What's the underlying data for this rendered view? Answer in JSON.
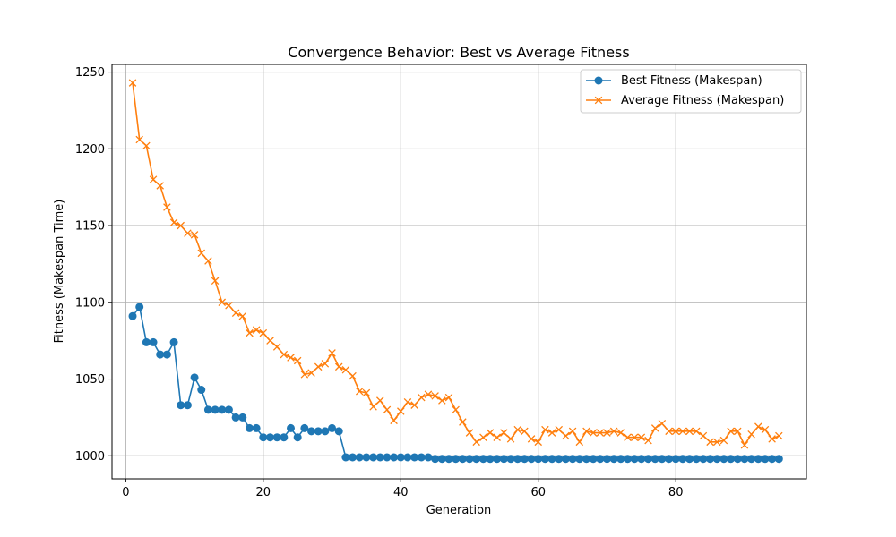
{
  "chart_data": {
    "type": "line",
    "title": "Convergence Behavior: Best vs Average Fitness",
    "xlabel": "Generation",
    "ylabel": "Fitness (Makespan Time)",
    "xlim": [
      -2,
      99
    ],
    "ylim": [
      985,
      1255
    ],
    "xticks": [
      0,
      20,
      40,
      60,
      80
    ],
    "yticks": [
      1000,
      1050,
      1100,
      1150,
      1200,
      1250
    ],
    "grid": true,
    "legend_position": "top-right",
    "x": [
      1,
      2,
      3,
      4,
      5,
      6,
      7,
      8,
      9,
      10,
      11,
      12,
      13,
      14,
      15,
      16,
      17,
      18,
      19,
      20,
      21,
      22,
      23,
      24,
      25,
      26,
      27,
      28,
      29,
      30,
      31,
      32,
      33,
      34,
      35,
      36,
      37,
      38,
      39,
      40,
      41,
      42,
      43,
      44,
      45,
      46,
      47,
      48,
      49,
      50,
      51,
      52,
      53,
      54,
      55,
      56,
      57,
      58,
      59,
      60,
      61,
      62,
      63,
      64,
      65,
      66,
      67,
      68,
      69,
      70,
      71,
      72,
      73,
      74,
      75,
      76,
      77,
      78,
      79,
      80,
      81,
      82,
      83,
      84,
      85,
      86,
      87,
      88,
      89,
      90,
      91,
      92,
      93,
      94,
      95
    ],
    "series": [
      {
        "name": "Best Fitness (Makespan)",
        "color": "#1f77b4",
        "marker": "circle",
        "values": [
          1091,
          1097,
          1074,
          1074,
          1066,
          1066,
          1074,
          1033,
          1033,
          1051,
          1043,
          1030,
          1030,
          1030,
          1030,
          1025,
          1025,
          1018,
          1018,
          1012,
          1012,
          1012,
          1012,
          1018,
          1012,
          1018,
          1016,
          1016,
          1016,
          1018,
          1016,
          999,
          999,
          999,
          999,
          999,
          999,
          999,
          999,
          999,
          999,
          999,
          999,
          999,
          998,
          998,
          998,
          998,
          998,
          998,
          998,
          998,
          998,
          998,
          998,
          998,
          998,
          998,
          998,
          998,
          998,
          998,
          998,
          998,
          998,
          998,
          998,
          998,
          998,
          998,
          998,
          998,
          998,
          998,
          998,
          998,
          998,
          998,
          998,
          998,
          998,
          998,
          998,
          998,
          998,
          998,
          998,
          998,
          998,
          998,
          998,
          998,
          998,
          998,
          998
        ]
      },
      {
        "name": "Average Fitness (Makespan)",
        "color": "#ff7f0e",
        "marker": "x",
        "values": [
          1243,
          1206,
          1202,
          1180,
          1176,
          1162,
          1152,
          1150,
          1145,
          1144,
          1132,
          1127,
          1114,
          1100,
          1098,
          1093,
          1091,
          1080,
          1082,
          1080,
          1075,
          1071,
          1066,
          1064,
          1062,
          1053,
          1054,
          1058,
          1060,
          1067,
          1058,
          1056,
          1052,
          1042,
          1041,
          1032,
          1036,
          1030,
          1023,
          1029,
          1035,
          1033,
          1038,
          1040,
          1039,
          1036,
          1038,
          1030,
          1022,
          1015,
          1009,
          1012,
          1015,
          1012,
          1015,
          1011,
          1017,
          1016,
          1011,
          1009,
          1017,
          1015,
          1017,
          1013,
          1016,
          1009,
          1016,
          1015,
          1015,
          1015,
          1016,
          1015,
          1012,
          1012,
          1012,
          1010,
          1018,
          1021,
          1016,
          1016,
          1016,
          1016,
          1016,
          1013,
          1009,
          1009,
          1010,
          1016,
          1016,
          1007,
          1014,
          1019,
          1017,
          1011,
          1013
        ]
      }
    ]
  }
}
